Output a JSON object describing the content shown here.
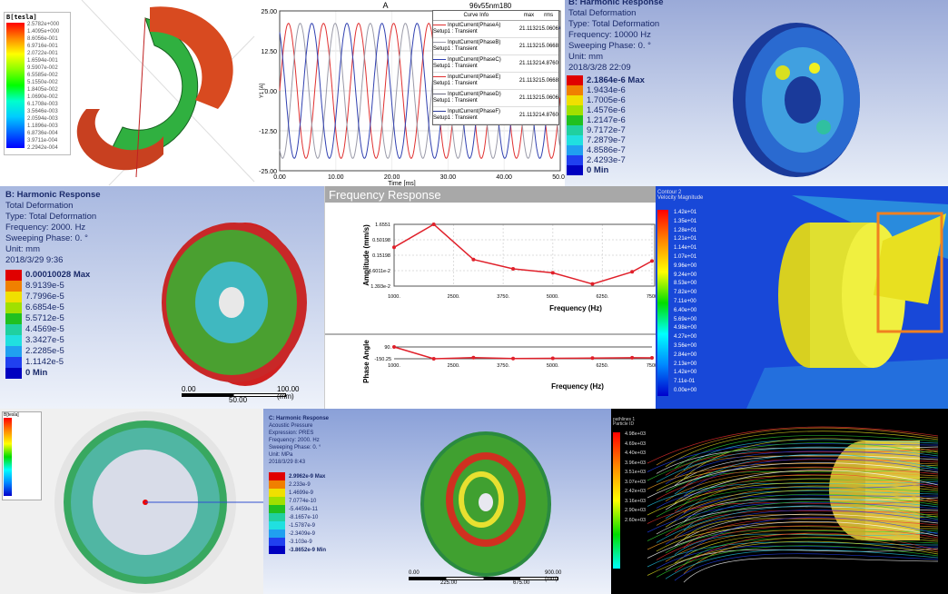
{
  "panel_magnetic": {
    "legend_title": "B[tesla]",
    "legend_values": [
      "2.5782e+000",
      "1.4095e+000",
      "8.6056e-001",
      "6.9716e-001",
      "2.0722e-001",
      "1.6594e-001",
      "9.5907e-002",
      "6.5585e-002",
      "5.1550e-002",
      "1.8405e-002",
      "1.0690e-002",
      "6.1708e-003",
      "3.5646e-003",
      "2.0594e-003",
      "1.1896e-003",
      "6.8736e-004",
      "3.9711e-004",
      "2.2942e-004"
    ]
  },
  "panel_current": {
    "title": "A",
    "chart_label": "96v55nm180",
    "legend_header": [
      "Curve Info",
      "max",
      "rms"
    ],
    "legend_rows": [
      {
        "name": "InputCurrent(PhaseA)",
        "setup": "Setup1 : Transient",
        "max": "21.1132",
        "rms": "15.0606",
        "color": "#e03030"
      },
      {
        "name": "InputCurrent(PhaseB)",
        "setup": "Setup1 : Transient",
        "max": "21.1132",
        "rms": "15.0668",
        "color": "#9a9aa8"
      },
      {
        "name": "InputCurrent(PhaseC)",
        "setup": "Setup1 : Transient",
        "max": "21.1132",
        "rms": "14.8760",
        "color": "#3040b0"
      },
      {
        "name": "InputCurrent(PhaseE)",
        "setup": "Setup1 : Transient",
        "max": "21.1132",
        "rms": "15.0668",
        "color": "#e03030"
      },
      {
        "name": "InputCurrent(PhaseD)",
        "setup": "Setup1 : Transient",
        "max": "21.1132",
        "rms": "15.0606",
        "color": "#6a6a80"
      },
      {
        "name": "InputCurrent(PhaseF)",
        "setup": "Setup1 : Transient",
        "max": "21.1132",
        "rms": "14.8760",
        "color": "#2a3a9a"
      }
    ]
  },
  "chart_data": [
    {
      "type": "line",
      "title": "A",
      "xlabel": "Time [ms]",
      "ylabel": "Y1 [A]",
      "xlim": [
        0,
        50
      ],
      "ylim": [
        -25,
        25
      ],
      "xticks": [
        "0.00",
        "10.00",
        "20.00",
        "30.00",
        "40.00",
        "50.00"
      ],
      "yticks": [
        "25.00",
        "12.50",
        "0.00",
        "-12.50",
        "-25.00"
      ],
      "grid": true,
      "series_form": "sinusoid",
      "amplitude": 21.1132,
      "period_ms": 6.25,
      "series": [
        {
          "name": "InputCurrent(PhaseA)",
          "phase_deg": 0,
          "color": "#e03030"
        },
        {
          "name": "InputCurrent(PhaseB)",
          "phase_deg": -120,
          "color": "#9a9aa8"
        },
        {
          "name": "InputCurrent(PhaseC)",
          "phase_deg": 120,
          "color": "#3040b0"
        }
      ]
    },
    {
      "type": "line",
      "title": "Frequency Response",
      "xlabel": "Frequency (Hz)",
      "ylabel": "Amplitude (mm/s)",
      "yscale": "log",
      "xticks": [
        "1000.",
        "2500.",
        "3750.",
        "5000.",
        "6250.",
        "7500"
      ],
      "yticks": [
        "1.6551",
        "0.50198",
        "0.15198",
        "4.6011e-2",
        "1.393e-2"
      ],
      "xlim": [
        1000,
        7500
      ],
      "ylim": [
        0.01393,
        1.6551
      ],
      "grid": true,
      "x": [
        1000,
        2000,
        3000,
        4000,
        5000,
        6000,
        7000,
        7500
      ],
      "values": [
        0.28,
        1.6551,
        0.109,
        0.053,
        0.039,
        0.0164,
        0.042,
        0.097
      ],
      "color": "#e0202a"
    },
    {
      "type": "line",
      "xlabel": "Frequency (Hz)",
      "ylabel": "Phase Angle",
      "xticks": [
        "1000.",
        "2500.",
        "3750.",
        "5000.",
        "6250.",
        "7500"
      ],
      "yticks": [
        "90.",
        "-150.25"
      ],
      "xlim": [
        1000,
        7500
      ],
      "ylim": [
        -150.25,
        90
      ],
      "x": [
        1000,
        2000,
        3000,
        4000,
        5000,
        6000,
        7000,
        7500
      ],
      "values": [
        90,
        -150,
        -128,
        -145,
        -140,
        -137,
        -130,
        -132
      ],
      "color": "#e0202a"
    }
  ],
  "panel_harmonic_top": {
    "lines": [
      "B: Harmonic Response",
      "Total Deformation",
      "Type: Total Deformation",
      "Frequency: 10000 Hz",
      "Sweeping Phase: 0. °",
      "Unit: mm",
      "2018/3/28 22:09"
    ],
    "legend": [
      "2.1864e-6 Max",
      "1.9434e-6",
      "1.7005e-6",
      "1.4576e-6",
      "1.2147e-6",
      "9.7172e-7",
      "7.2879e-7",
      "4.8586e-7",
      "2.4293e-7",
      "0 Min"
    ]
  },
  "panel_harmonic_mid": {
    "lines": [
      "B: Harmonic Response",
      "Total Deformation",
      "Type: Total Deformation",
      "Frequency: 2000. Hz",
      "Sweeping Phase: 0. °",
      "Unit: mm",
      "2018/3/29 9:36"
    ],
    "legend": [
      "0.00010028 Max",
      "8.9139e-5",
      "7.7996e-5",
      "6.6854e-5",
      "5.5712e-5",
      "4.4569e-5",
      "3.3427e-5",
      "2.2285e-5",
      "1.1142e-5",
      "0 Min"
    ],
    "scale": [
      "0.00",
      "100.00 (mm)",
      "50.00"
    ]
  },
  "panel_cfd": {
    "title": [
      "Contour 2",
      "Velocity Magnitude"
    ],
    "legend": [
      "1.42e+01",
      "1.35e+01",
      "1.28e+01",
      "1.21e+01",
      "1.14e+01",
      "1.07e+01",
      "9.96e+00",
      "9.24e+00",
      "8.53e+00",
      "7.82e+00",
      "7.11e+00",
      "6.40e+00",
      "5.69e+00",
      "4.98e+00",
      "4.27e+00",
      "3.56e+00",
      "2.84e+00",
      "2.13e+00",
      "1.42e+00",
      "7.11e-01",
      "0.00e+00"
    ]
  },
  "panel_ring": {
    "legend_title": "B[tesla]"
  },
  "panel_acoustic": {
    "lines": [
      "C: Harmonic Response",
      "Acoustic Pressure",
      "Expression: PRES",
      "Frequency: 2000. Hz",
      "Sweeping Phase: 0. °",
      "Unit: MPa",
      "2018/3/29 8:43"
    ],
    "legend": [
      "2.9962e-9 Max",
      "2.233e-9",
      "1.4699e-9",
      "7.0774e-10",
      "-5.4459e-11",
      "-8.1657e-10",
      "-1.5787e-9",
      "-2.3409e-9",
      "-3.103e-9",
      "-3.8652e-9 Min"
    ],
    "scale": [
      "0.00",
      "900.00 (mm)",
      "225.00",
      "675.00"
    ]
  },
  "panel_streamline": {
    "title": [
      "pathlines 1",
      "Particle ID"
    ],
    "legend": [
      "4.98e+03",
      "4.69e+03",
      "4.40e+03",
      "3.96e+03",
      "3.51e+03",
      "3.07e+03",
      "2.42e+03",
      "3.16e+03",
      "2.90e+03",
      "2.60e+03"
    ]
  },
  "colors": {
    "accent_red": "#e0202a",
    "ansys_blue_text": "#1a2a6a"
  }
}
